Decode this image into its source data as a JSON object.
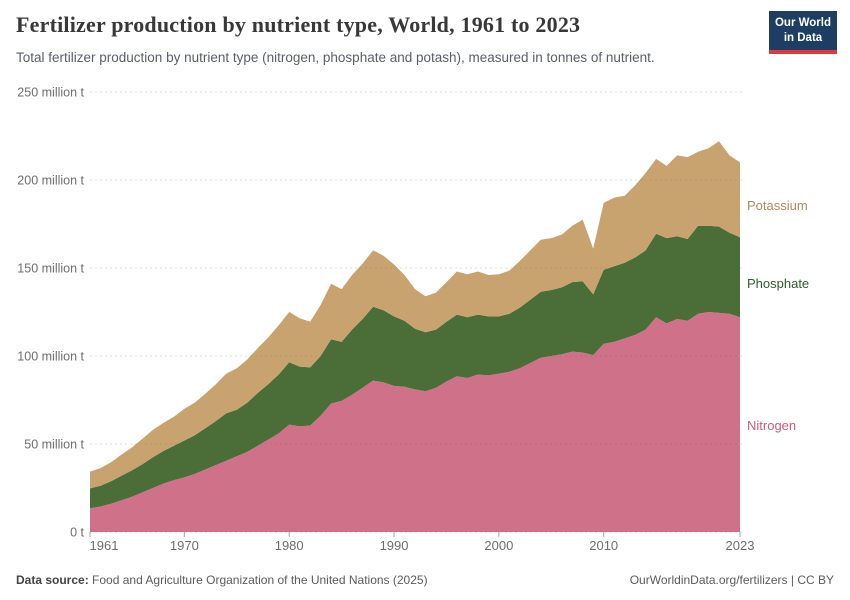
{
  "header": {
    "title": "Fertilizer production by nutrient type, World, 1961 to 2023",
    "subtitle": "Total fertilizer production by nutrient type (nitrogen, phosphate and potash), measured in tonnes of nutrient.",
    "logo_line1": "Our World",
    "logo_line2": "in Data",
    "logo_bg_color": "#1d3d63",
    "logo_accent_color": "#d93b42"
  },
  "footer": {
    "datasource_label": "Data source:",
    "datasource_text": " Food and Agriculture Organization of the United Nations (2025)",
    "credit": "OurWorldinData.org/fertilizers | CC BY"
  },
  "chart_data": {
    "type": "area",
    "stacked": true,
    "title": "Fertilizer production by nutrient type, World, 1961 to 2023",
    "unit": "tonnes of nutrient",
    "ylim": [
      0,
      250
    ],
    "grid": true,
    "legend_position": "right",
    "yticks": [
      0,
      50,
      100,
      150,
      200,
      250
    ],
    "ytick_labels": [
      "0 t",
      "50 million t",
      "100 million t",
      "150 million t",
      "200 million t",
      "250 million t"
    ],
    "xticks": [
      1961,
      1970,
      1980,
      1990,
      2000,
      2010,
      2023
    ],
    "x": [
      1961,
      1962,
      1963,
      1964,
      1965,
      1966,
      1967,
      1968,
      1969,
      1970,
      1971,
      1972,
      1973,
      1974,
      1975,
      1976,
      1977,
      1978,
      1979,
      1980,
      1981,
      1982,
      1983,
      1984,
      1985,
      1986,
      1987,
      1988,
      1989,
      1990,
      1991,
      1992,
      1993,
      1994,
      1995,
      1996,
      1997,
      1998,
      1999,
      2000,
      2001,
      2002,
      2003,
      2004,
      2005,
      2006,
      2007,
      2008,
      2009,
      2010,
      2011,
      2012,
      2013,
      2014,
      2015,
      2016,
      2017,
      2018,
      2019,
      2020,
      2021,
      2022,
      2023
    ],
    "series": [
      {
        "name": "Nitrogen",
        "color": "#d0718a",
        "label_color": "#cf5b7c",
        "values": [
          13.5,
          14.5,
          16,
          18,
          20,
          22.5,
          25,
          27.5,
          29.5,
          31,
          33,
          35.5,
          38,
          40.5,
          43,
          45.5,
          49,
          52.5,
          56,
          61,
          60,
          60.5,
          66,
          73,
          74.5,
          78,
          82,
          86,
          85,
          83,
          82.5,
          81,
          80,
          82,
          85.5,
          88.5,
          87.5,
          89.5,
          89,
          90,
          91,
          93,
          96,
          99,
          100,
          101,
          102.5,
          102,
          100.5,
          107,
          108,
          110,
          112,
          115,
          122,
          118.5,
          121,
          120,
          124,
          125,
          124.5,
          124,
          122
        ]
      },
      {
        "name": "Phosphate",
        "color": "#4b6d38",
        "label_color": "#2c5e2c",
        "values": [
          11.3,
          11.8,
          12.8,
          14,
          15,
          16,
          17.5,
          18.5,
          19.5,
          21,
          22,
          23.5,
          25,
          27,
          26.5,
          28,
          30,
          31.5,
          33.5,
          35.5,
          34,
          33,
          34,
          36.5,
          33.5,
          37,
          39,
          42,
          41,
          39.5,
          37.5,
          34.5,
          33.5,
          33,
          34,
          35,
          34.5,
          34,
          33.5,
          32.5,
          33,
          34.5,
          36,
          37.5,
          37.5,
          38,
          39.5,
          40.5,
          34.5,
          42,
          43,
          43,
          44,
          45,
          47.5,
          48.5,
          47,
          46.5,
          50,
          49,
          49,
          46,
          45.5
        ]
      },
      {
        "name": "Potassium",
        "color": "#c8a370",
        "label_color": "#b28a58",
        "values": [
          9.5,
          10,
          10.8,
          12,
          13,
          14.5,
          15.5,
          16,
          16.5,
          18,
          18.5,
          19.5,
          21,
          22.5,
          23.5,
          24.5,
          25.5,
          26.5,
          28,
          28.5,
          27.5,
          26,
          29,
          31.5,
          30,
          31,
          31.5,
          32,
          31,
          29.5,
          26,
          22.5,
          20.5,
          21,
          22.5,
          24.5,
          24.5,
          24.5,
          23.5,
          24,
          24.5,
          26.5,
          28,
          29.5,
          29.5,
          30,
          32,
          35,
          26,
          38,
          39,
          38,
          41,
          44,
          42.5,
          41,
          46,
          46.5,
          42,
          44,
          48.5,
          44,
          42.5
        ]
      }
    ]
  }
}
